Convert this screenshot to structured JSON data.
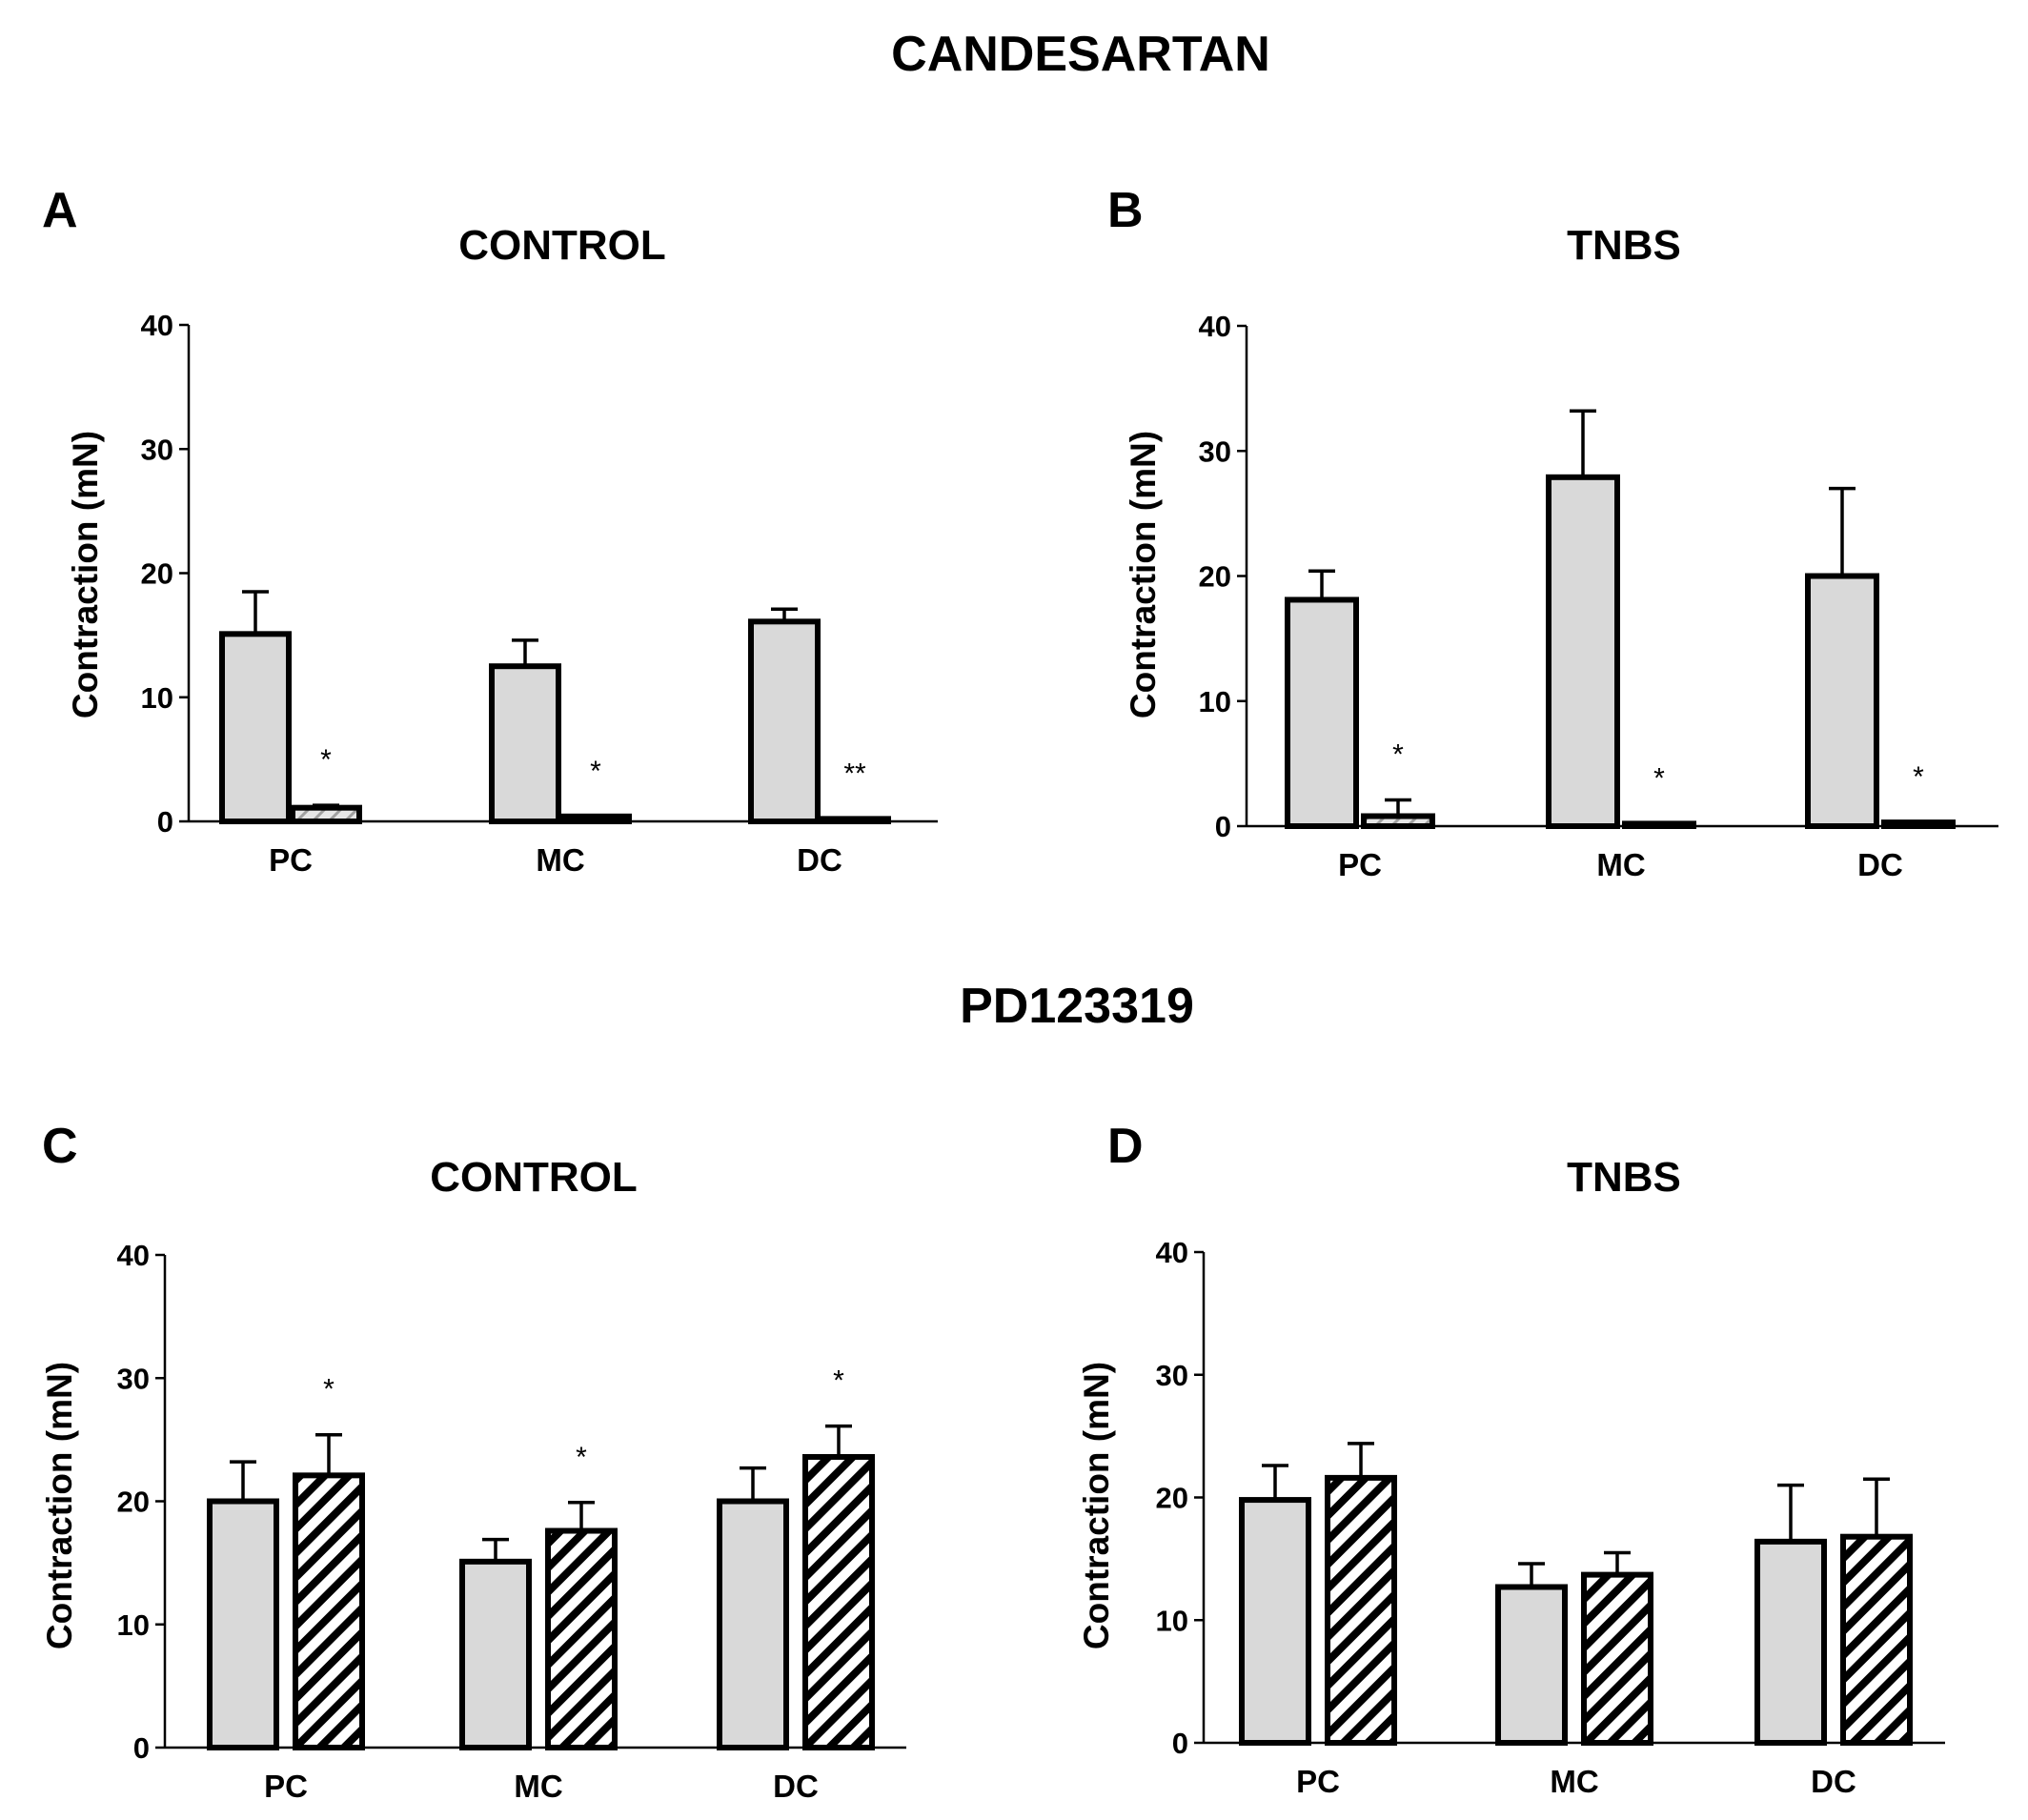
{
  "figure": {
    "section_titles": [
      "CANDESARTAN",
      "PD123319"
    ],
    "fill_colors": {
      "control_bar": "#d9d9d9",
      "treated_bar_hatch": "#bfbfbf",
      "stroke": "#000000"
    }
  },
  "chart_data": [
    {
      "panel": "A",
      "section": "CANDESARTAN",
      "type": "bar",
      "title": "CONTROL",
      "ylabel": "Contraction (mN)",
      "xlabel": "",
      "ylim": [
        0,
        40
      ],
      "yticks": [
        "0",
        "10",
        "20",
        "30",
        "40"
      ],
      "categories": [
        "PC",
        "MC",
        "DC"
      ],
      "series": [
        {
          "style": "solid",
          "values": [
            15.1,
            12.5,
            16.1
          ],
          "errors": [
            3.4,
            2.1,
            1.0
          ]
        },
        {
          "style": "hatched",
          "values": [
            1.1,
            0.4,
            0.2
          ],
          "errors": [
            0.2,
            0,
            0
          ]
        }
      ],
      "annotations": [
        "*",
        "*",
        "**"
      ]
    },
    {
      "panel": "B",
      "section": "CANDESARTAN",
      "type": "bar",
      "title": "TNBS",
      "ylabel": "Contraction (mN)",
      "xlabel": "",
      "ylim": [
        0,
        40
      ],
      "yticks": [
        "0",
        "10",
        "20",
        "30",
        "40"
      ],
      "categories": [
        "PC",
        "MC",
        "DC"
      ],
      "series": [
        {
          "style": "solid",
          "values": [
            18.1,
            27.9,
            20.0
          ],
          "errors": [
            2.3,
            5.3,
            7.0
          ]
        },
        {
          "style": "hatched",
          "values": [
            0.8,
            0.2,
            0.3
          ],
          "errors": [
            1.3,
            0,
            0
          ]
        }
      ],
      "annotations": [
        "*",
        "*",
        "*"
      ]
    },
    {
      "panel": "C",
      "section": "PD123319",
      "type": "bar",
      "title": "CONTROL",
      "ylabel": "Contraction (mN)",
      "xlabel": "",
      "ylim": [
        0,
        40
      ],
      "yticks": [
        "0",
        "10",
        "20",
        "30",
        "40"
      ],
      "categories": [
        "PC",
        "MC",
        "DC"
      ],
      "series": [
        {
          "style": "solid",
          "values": [
            20.0,
            15.1,
            20.0
          ],
          "errors": [
            3.2,
            1.8,
            2.7
          ]
        },
        {
          "style": "hatched",
          "values": [
            22.1,
            17.6,
            23.6
          ],
          "errors": [
            3.3,
            2.3,
            2.5
          ]
        }
      ],
      "annotations": [
        "*",
        "*",
        "*"
      ]
    },
    {
      "panel": "D",
      "section": "PD123319",
      "type": "bar",
      "title": "TNBS",
      "ylabel": "Contraction (mN)",
      "xlabel": "",
      "ylim": [
        0,
        40
      ],
      "yticks": [
        "0",
        "10",
        "20",
        "30",
        "40"
      ],
      "categories": [
        "PC",
        "MC",
        "DC"
      ],
      "series": [
        {
          "style": "solid",
          "values": [
            19.8,
            12.7,
            16.4
          ],
          "errors": [
            2.8,
            1.9,
            4.6
          ]
        },
        {
          "style": "hatched",
          "values": [
            21.6,
            13.7,
            16.8
          ],
          "errors": [
            2.8,
            1.8,
            4.7
          ]
        }
      ],
      "annotations": [
        "",
        "",
        ""
      ]
    }
  ]
}
